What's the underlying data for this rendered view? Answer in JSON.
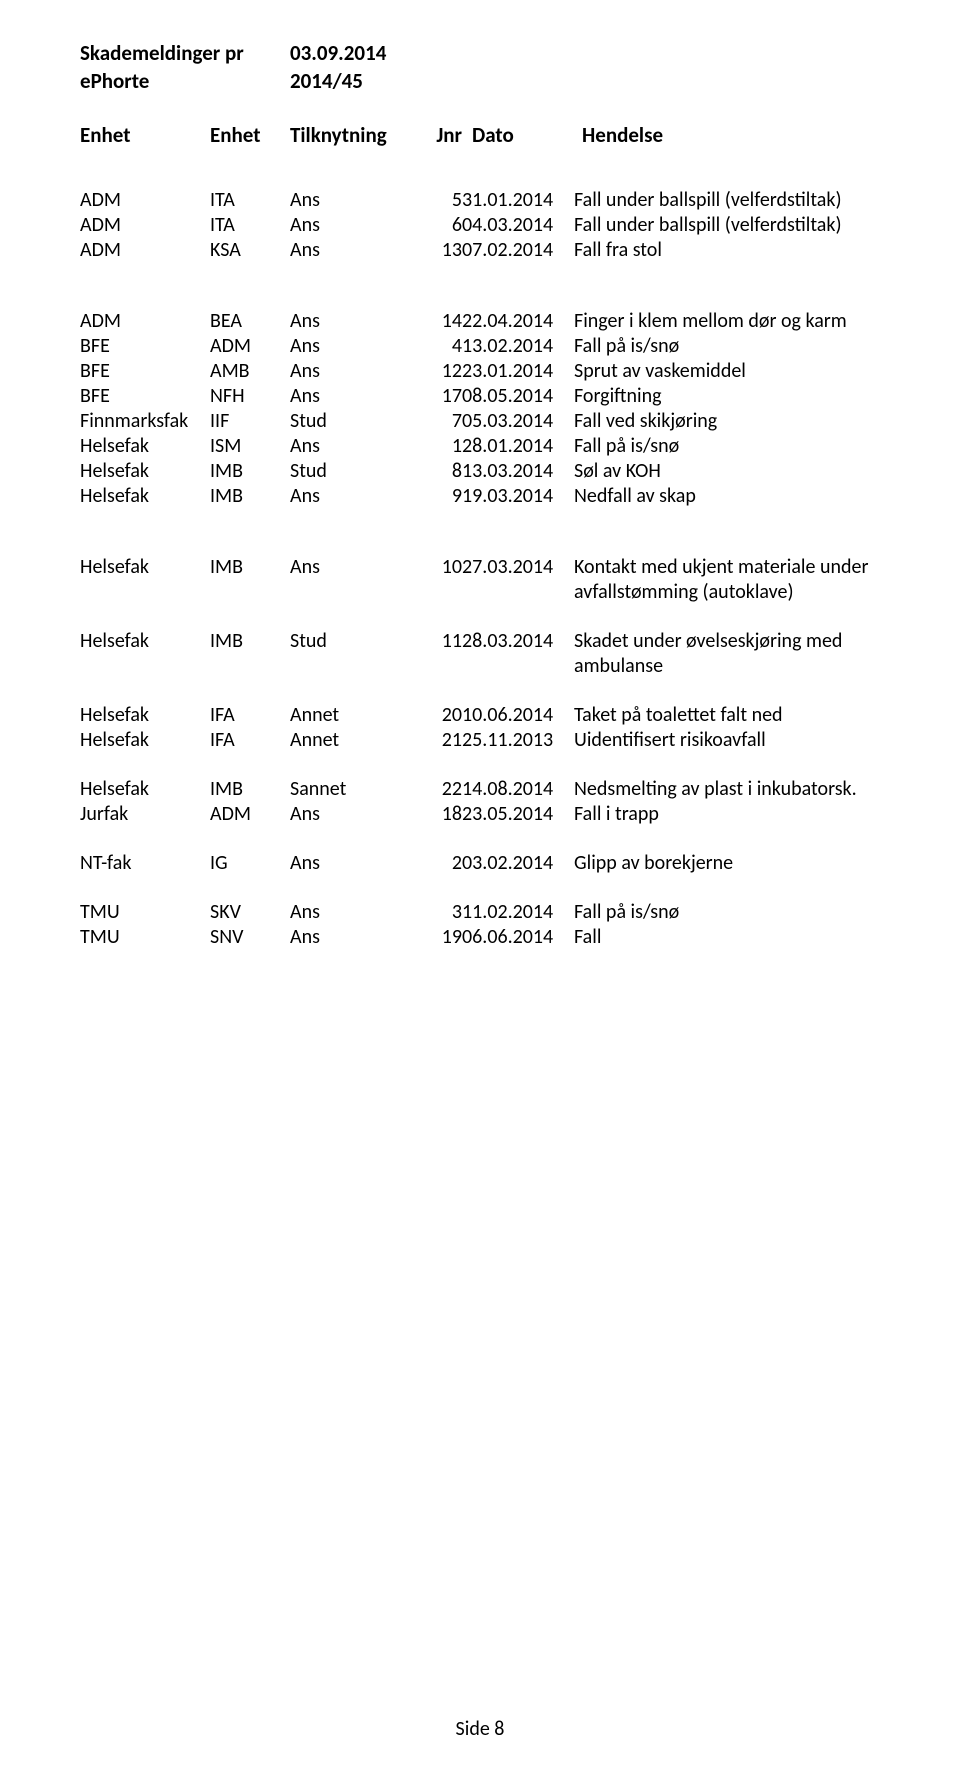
{
  "header": {
    "title_label": "Skademeldinger pr",
    "title_date": "03.09.2014",
    "ref_label": "ePhorte",
    "ref_value": "2014/45"
  },
  "columns": {
    "enhet1": "Enhet",
    "enhet2": "Enhet",
    "tilkn": "Tilknytning",
    "jnr": "Jnr",
    "dato": "Dato",
    "hendelse": "Hendelse"
  },
  "group1": [
    {
      "e1": "ADM",
      "e2": "ITA",
      "t": "Ans",
      "j": "5",
      "d": "31.01.2014",
      "h": "Fall under ballspill (velferdstiltak)"
    },
    {
      "e1": "ADM",
      "e2": "ITA",
      "t": "Ans",
      "j": "6",
      "d": "04.03.2014",
      "h": "Fall under ballspill (velferdstiltak)"
    },
    {
      "e1": "ADM",
      "e2": "KSA",
      "t": "Ans",
      "j": "13",
      "d": "07.02.2014",
      "h": "Fall fra stol"
    }
  ],
  "group2": [
    {
      "e1": "ADM",
      "e2": "BEA",
      "t": "Ans",
      "j": "14",
      "d": "22.04.2014",
      "h": "Finger i klem mellom dør og karm"
    },
    {
      "e1": "BFE",
      "e2": "ADM",
      "t": "Ans",
      "j": "4",
      "d": "13.02.2014",
      "h": "Fall på is/snø"
    },
    {
      "e1": "BFE",
      "e2": "AMB",
      "t": "Ans",
      "j": "12",
      "d": "23.01.2014",
      "h": "Sprut av vaskemiddel"
    },
    {
      "e1": "BFE",
      "e2": "NFH",
      "t": "Ans",
      "j": "17",
      "d": "08.05.2014",
      "h": "Forgiftning"
    },
    {
      "e1": "Finnmarksfak",
      "e2": "IIF",
      "t": "Stud",
      "j": "7",
      "d": "05.03.2014",
      "h": "Fall ved skikjøring"
    },
    {
      "e1": "Helsefak",
      "e2": "ISM",
      "t": "Ans",
      "j": "1",
      "d": "28.01.2014",
      "h": "Fall på is/snø"
    },
    {
      "e1": "Helsefak",
      "e2": "IMB",
      "t": "Stud",
      "j": "8",
      "d": "13.03.2014",
      "h": "Søl av KOH"
    },
    {
      "e1": "Helsefak",
      "e2": "IMB",
      "t": "Ans",
      "j": "9",
      "d": "19.03.2014",
      "h": "Nedfall av skap"
    }
  ],
  "group3": [
    {
      "e1": "Helsefak",
      "e2": "IMB",
      "t": "Ans",
      "j": "10",
      "d": "27.03.2014",
      "h": "Kontakt med ukjent materiale under avfallstømming (autoklave)"
    }
  ],
  "group4": [
    {
      "e1": "Helsefak",
      "e2": "IMB",
      "t": "Stud",
      "j": "11",
      "d": "28.03.2014",
      "h": "Skadet under øvelseskjøring med ambulanse"
    }
  ],
  "group5": [
    {
      "e1": "Helsefak",
      "e2": "IFA",
      "t": "Annet",
      "j": "20",
      "d": "10.06.2014",
      "h": "Taket på toalettet falt ned"
    },
    {
      "e1": "Helsefak",
      "e2": "IFA",
      "t": "Annet",
      "j": "21",
      "d": "25.11.2013",
      "h": "Uidentifisert risikoavfall"
    }
  ],
  "group6": [
    {
      "e1": "Helsefak",
      "e2": "IMB",
      "t": "Sannet",
      "j": "22",
      "d": "14.08.2014",
      "h": "Nedsmelting av plast i inkubatorsk."
    },
    {
      "e1": "Jurfak",
      "e2": "ADM",
      "t": "Ans",
      "j": "18",
      "d": "23.05.2014",
      "h": "Fall i trapp"
    }
  ],
  "group7": [
    {
      "e1": "NT-fak",
      "e2": "IG",
      "t": "Ans",
      "j": "2",
      "d": "03.02.2014",
      "h": "Glipp av borekjerne"
    }
  ],
  "group8": [
    {
      "e1": "TMU",
      "e2": "SKV",
      "t": "Ans",
      "j": "3",
      "d": "11.02.2014",
      "h": "Fall på is/snø"
    },
    {
      "e1": "TMU",
      "e2": "SNV",
      "t": "Ans",
      "j": "19",
      "d": "06.06.2014",
      "h": "Fall"
    }
  ],
  "footer": "Side 8"
}
